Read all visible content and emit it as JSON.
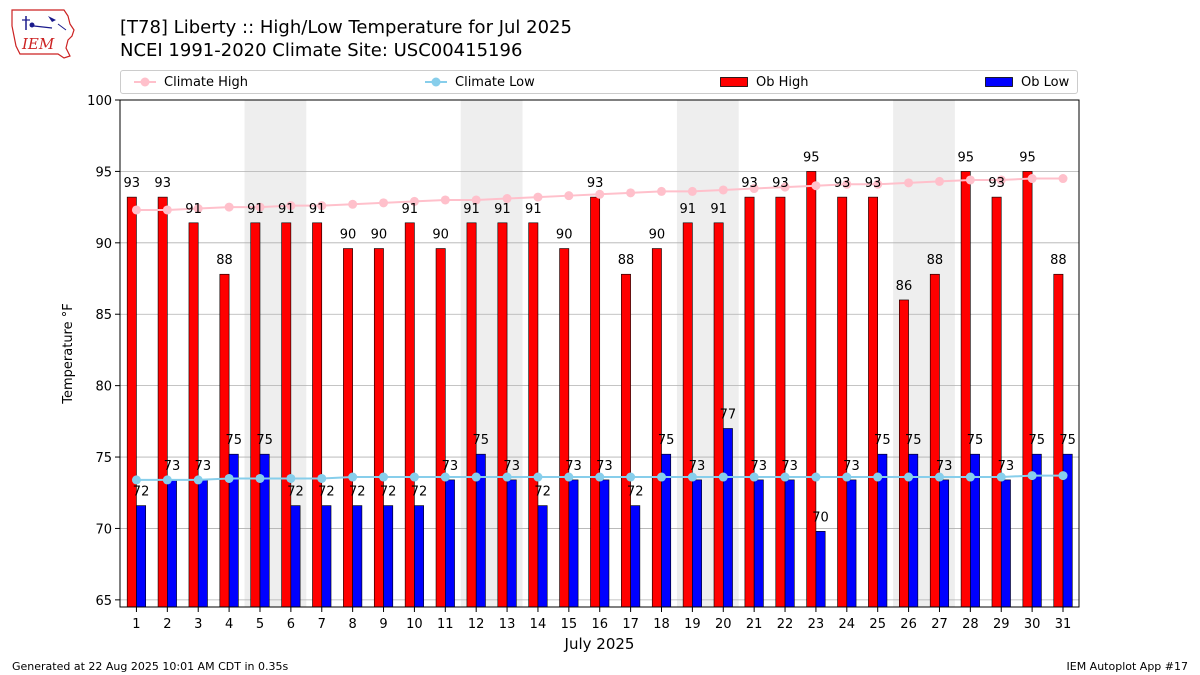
{
  "header": {
    "logo_text": "IEM",
    "title_line1": "[T78] Liberty :: High/Low Temperature for Jul 2025",
    "title_line2": "NCEI 1991-2020 Climate Site: USC00415196"
  },
  "legend": {
    "items": [
      {
        "label": "Climate High",
        "color": "#ffc0cb",
        "kind": "line-marker"
      },
      {
        "label": "Climate Low",
        "color": "#87ceeb",
        "kind": "line-marker"
      },
      {
        "label": "Ob High",
        "color": "#ff0000",
        "kind": "bar"
      },
      {
        "label": "Ob Low",
        "color": "#0000ff",
        "kind": "bar"
      }
    ]
  },
  "footer": {
    "left": "Generated at 22 Aug 2025 10:01 AM CDT in 0.35s",
    "right": "IEM Autoplot App #17"
  },
  "chart_data": {
    "type": "bar",
    "xlabel": "July 2025",
    "ylabel": "Temperature °F",
    "ylim": [
      64.5,
      100
    ],
    "yticks": [
      65,
      70,
      75,
      80,
      85,
      90,
      95,
      100
    ],
    "grid": "horizontal",
    "categories": [
      "1",
      "2",
      "3",
      "4",
      "5",
      "6",
      "7",
      "8",
      "9",
      "10",
      "11",
      "12",
      "13",
      "14",
      "15",
      "16",
      "17",
      "18",
      "19",
      "20",
      "21",
      "22",
      "23",
      "24",
      "25",
      "26",
      "27",
      "28",
      "29",
      "30",
      "31"
    ],
    "weekend_shaded_days": [
      [
        5,
        6
      ],
      [
        12,
        13
      ],
      [
        19,
        20
      ],
      [
        26,
        27
      ]
    ],
    "series": [
      {
        "name": "Ob High",
        "type": "bar",
        "color": "#ff0000",
        "values": [
          93,
          93,
          91,
          88,
          91,
          91,
          91,
          90,
          90,
          91,
          90,
          91,
          91,
          91,
          90,
          93,
          88,
          90,
          91,
          91,
          93,
          93,
          95,
          93,
          93,
          86,
          88,
          95,
          93,
          95,
          88
        ],
        "bar_tops": [
          93.2,
          93.2,
          91.4,
          87.8,
          91.4,
          91.4,
          91.4,
          89.6,
          89.6,
          91.4,
          89.6,
          91.4,
          91.4,
          91.4,
          89.6,
          93.2,
          87.8,
          89.6,
          91.4,
          91.4,
          93.2,
          93.2,
          95.0,
          93.2,
          93.2,
          86.0,
          87.8,
          95.0,
          93.2,
          95.0,
          87.8
        ]
      },
      {
        "name": "Ob Low",
        "type": "bar",
        "color": "#0000ff",
        "values": [
          72,
          73,
          73,
          75,
          75,
          72,
          72,
          72,
          72,
          72,
          73,
          75,
          73,
          72,
          73,
          73,
          72,
          75,
          73,
          77,
          73,
          73,
          70,
          73,
          75,
          75,
          73,
          75,
          73,
          75,
          75
        ],
        "bar_tops": [
          71.6,
          73.4,
          73.4,
          75.2,
          75.2,
          71.6,
          71.6,
          71.6,
          71.6,
          71.6,
          73.4,
          75.2,
          73.4,
          71.6,
          73.4,
          73.4,
          71.6,
          75.2,
          73.4,
          77.0,
          73.4,
          73.4,
          69.8,
          73.4,
          75.2,
          75.2,
          73.4,
          75.2,
          73.4,
          75.2,
          75.2
        ]
      },
      {
        "name": "Climate High",
        "type": "line",
        "color": "#ffc0cb",
        "values": [
          92.3,
          92.3,
          92.4,
          92.5,
          92.5,
          92.6,
          92.6,
          92.7,
          92.8,
          92.9,
          93.0,
          93.0,
          93.1,
          93.2,
          93.3,
          93.4,
          93.5,
          93.6,
          93.6,
          93.7,
          93.8,
          93.9,
          94.0,
          94.1,
          94.1,
          94.2,
          94.3,
          94.4,
          94.4,
          94.5,
          94.5
        ]
      },
      {
        "name": "Climate Low",
        "type": "line",
        "color": "#87ceeb",
        "values": [
          73.4,
          73.4,
          73.4,
          73.5,
          73.5,
          73.5,
          73.5,
          73.6,
          73.6,
          73.6,
          73.6,
          73.6,
          73.6,
          73.6,
          73.6,
          73.6,
          73.6,
          73.6,
          73.6,
          73.6,
          73.6,
          73.6,
          73.6,
          73.6,
          73.6,
          73.6,
          73.6,
          73.6,
          73.6,
          73.7,
          73.7
        ]
      }
    ]
  }
}
